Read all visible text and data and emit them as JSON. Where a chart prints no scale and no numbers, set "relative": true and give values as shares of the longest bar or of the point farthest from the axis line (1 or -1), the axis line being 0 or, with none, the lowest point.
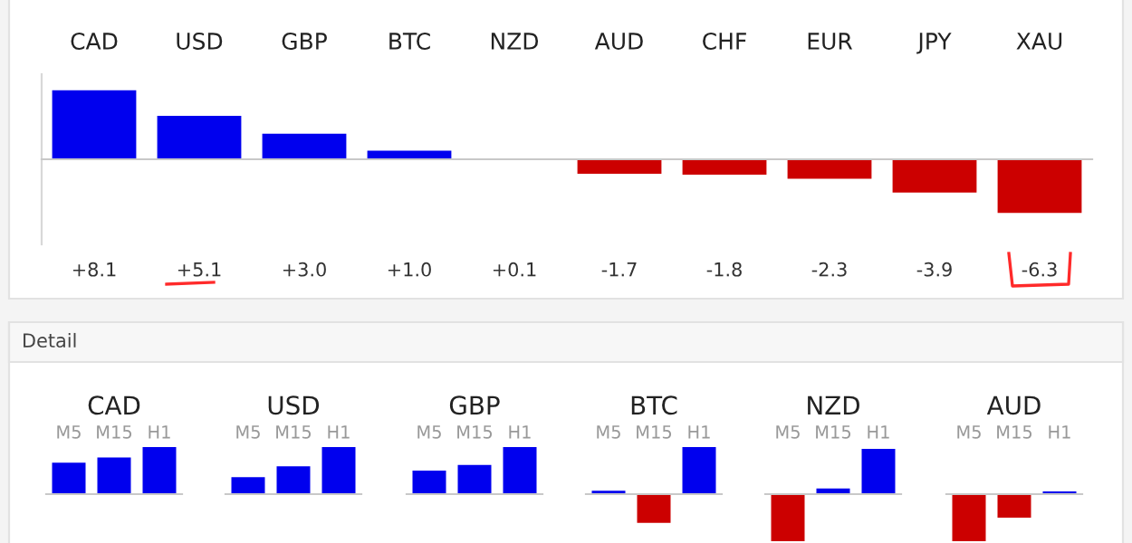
{
  "chart_data": [
    {
      "type": "bar",
      "categories": [
        "CAD",
        "USD",
        "GBP",
        "BTC",
        "NZD",
        "AUD",
        "CHF",
        "EUR",
        "JPY",
        "XAU"
      ],
      "values": [
        8.1,
        5.1,
        3.0,
        1.0,
        0.1,
        -1.7,
        -1.8,
        -2.3,
        -3.9,
        -6.3
      ],
      "colors": [
        "#0000ee",
        "#0000ee",
        "#0000ee",
        "#0000ee",
        "#0000ee",
        "#cc0000",
        "#cc0000",
        "#cc0000",
        "#cc0000",
        "#cc0000"
      ],
      "value_labels": [
        "+8.1",
        "+5.1",
        "+3.0",
        "+1.0",
        "+0.1",
        "-1.7",
        "-1.8",
        "-2.3",
        "-3.9",
        "-6.3"
      ],
      "ylim": [
        -10,
        10
      ],
      "tick_labels": "x"
    },
    {
      "type": "bar",
      "title": "CAD",
      "annotations": [
        "Detail"
      ],
      "categories": [
        "M5",
        "M15",
        "H1"
      ],
      "values": [
        0.67,
        0.78,
        1.0
      ],
      "colors": [
        "#0000ee",
        "#0000ee",
        "#0000ee"
      ],
      "relative": true,
      "tick_labels": "x"
    },
    {
      "type": "bar",
      "title": "USD",
      "categories": [
        "M5",
        "M15",
        "H1"
      ],
      "values": [
        0.36,
        0.59,
        1.0
      ],
      "colors": [
        "#0000ee",
        "#0000ee",
        "#0000ee"
      ],
      "relative": true,
      "tick_labels": "x"
    },
    {
      "type": "bar",
      "title": "GBP",
      "categories": [
        "M5",
        "M15",
        "H1"
      ],
      "values": [
        0.5,
        0.62,
        1.0
      ],
      "colors": [
        "#0000ee",
        "#0000ee",
        "#0000ee"
      ],
      "relative": true,
      "tick_labels": "x"
    },
    {
      "type": "bar",
      "title": "BTC",
      "categories": [
        "M5",
        "M15",
        "H1"
      ],
      "values": [
        0.07,
        -0.61,
        1.0
      ],
      "colors": [
        "#0000ee",
        "#cc0000",
        "#0000ee"
      ],
      "relative": true,
      "tick_labels": "x"
    },
    {
      "type": "bar",
      "title": "NZD",
      "categories": [
        "M5",
        "M15",
        "H1"
      ],
      "values": [
        -1.0,
        0.12,
        0.96
      ],
      "colors": [
        "#cc0000",
        "#0000ee",
        "#0000ee"
      ],
      "relative": true,
      "tick_labels": "x"
    },
    {
      "type": "bar",
      "title": "AUD",
      "categories": [
        "M5",
        "M15",
        "H1"
      ],
      "values": [
        -1.0,
        -0.5,
        0.06
      ],
      "colors": [
        "#cc0000",
        "#cc0000",
        "#0000ee"
      ],
      "relative": true,
      "tick_labels": "x"
    }
  ]
}
